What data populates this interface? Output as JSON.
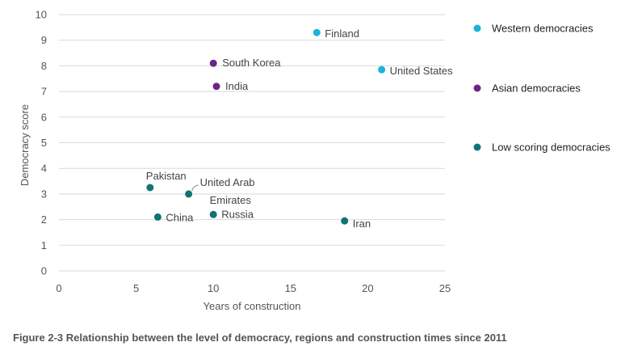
{
  "chart_data": {
    "type": "scatter",
    "xlabel": "Years of construction",
    "ylabel": "Democracy score",
    "xlim": [
      0,
      25
    ],
    "ylim": [
      0,
      10
    ],
    "xticks": [
      "0",
      "5",
      "10",
      "15",
      "20",
      "25"
    ],
    "yticks": [
      "0",
      "1",
      "2",
      "3",
      "4",
      "5",
      "6",
      "7",
      "8",
      "9",
      "10"
    ],
    "grid": "horizontal",
    "legend_position": "right",
    "series": [
      {
        "name": "Western democracies",
        "color": "#1AB3DA",
        "points": [
          {
            "label": "Finland",
            "x": 16.7,
            "y": 9.3
          },
          {
            "label": "United States",
            "x": 20.9,
            "y": 7.85
          }
        ]
      },
      {
        "name": "Asian democracies",
        "color": "#6B2784",
        "points": [
          {
            "label": "South Korea",
            "x": 10.0,
            "y": 8.1
          },
          {
            "label": "India",
            "x": 10.2,
            "y": 7.2
          }
        ]
      },
      {
        "name": "Low scoring democracies",
        "color": "#0F7474",
        "points": [
          {
            "label": "Pakistan",
            "x": 5.9,
            "y": 3.25
          },
          {
            "label": "United Arab Emirates",
            "label_lines": [
              "United Arab",
              "Emirates"
            ],
            "x": 8.4,
            "y": 3.0
          },
          {
            "label": "China",
            "x": 6.4,
            "y": 2.1
          },
          {
            "label": "Russia",
            "x": 10.0,
            "y": 2.2
          },
          {
            "label": "Iran",
            "x": 18.5,
            "y": 1.95
          }
        ]
      }
    ]
  },
  "caption": "Figure 2-3 Relationship between the level of democracy, regions and construction times since 2011"
}
